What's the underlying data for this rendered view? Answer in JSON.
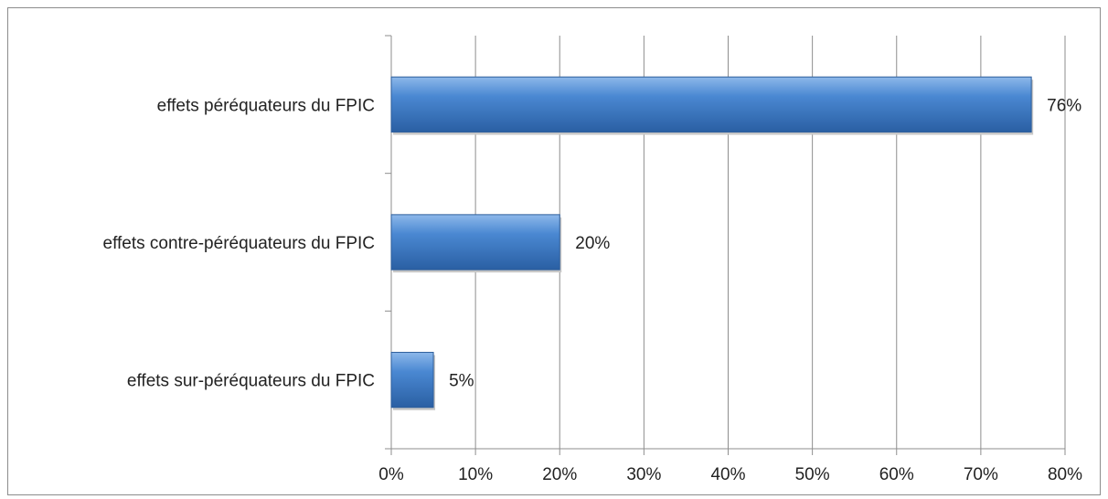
{
  "chart_data": {
    "type": "bar",
    "orientation": "horizontal",
    "categories": [
      "effets péréquateurs du FPIC",
      "effets contre-péréquateurs du FPIC",
      "effets sur-péréquateurs du FPIC"
    ],
    "values": [
      76,
      20,
      5
    ],
    "data_labels": [
      "76%",
      "20%",
      "5%"
    ],
    "xlim": [
      0,
      80
    ],
    "xticks": [
      0,
      10,
      20,
      30,
      40,
      50,
      60,
      70,
      80
    ],
    "xtick_labels": [
      "0%",
      "10%",
      "20%",
      "30%",
      "40%",
      "50%",
      "60%",
      "70%",
      "80%"
    ],
    "title": "",
    "xlabel": "",
    "ylabel": "",
    "grid": "vertical",
    "legend": "none",
    "bar_color": "#3f7dc8"
  }
}
